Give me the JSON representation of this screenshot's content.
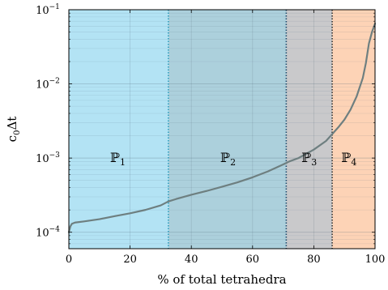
{
  "chart_data": {
    "type": "line",
    "xlabel": "% of total tetrahedra",
    "ylabel": "c0Δt",
    "ylabel_main": "c",
    "ylabel_sub": "0",
    "ylabel_tail": "Δt",
    "xlim": [
      0,
      100
    ],
    "ylim": [
      6e-05,
      0.1
    ],
    "yscale": "log",
    "grid": true,
    "x_ticks": [
      0,
      20,
      40,
      60,
      80,
      100
    ],
    "x_tick_labels": [
      "0",
      "20",
      "40",
      "60",
      "80",
      "100"
    ],
    "y_ticks": [
      0.0001,
      0.001,
      0.01,
      0.1
    ],
    "y_tick_labels": [
      {
        "base": "10",
        "exp": "−4"
      },
      {
        "base": "10",
        "exp": "−3"
      },
      {
        "base": "10",
        "exp": "−2"
      },
      {
        "base": "10",
        "exp": "−1"
      }
    ],
    "regions": [
      {
        "x0": 0,
        "x1": 32.5,
        "color": "#b3e3f4",
        "label_main": "ℙ",
        "label_sub": "1",
        "label_x": 16,
        "label_y": 0.001,
        "boundary_color": "#2f9fc0"
      },
      {
        "x0": 32.5,
        "x1": 71,
        "color": "#acd0dc",
        "label_main": "ℙ",
        "label_sub": "2",
        "label_x": 52,
        "label_y": 0.001,
        "boundary_color": "#1f4d6e"
      },
      {
        "x0": 71,
        "x1": 86,
        "color": "#c9c9cb",
        "label_main": "ℙ",
        "label_sub": "3",
        "label_x": 78.5,
        "label_y": 0.001,
        "boundary_color": "#333333"
      },
      {
        "x0": 86,
        "x1": 100,
        "color": "#fdd3b6",
        "label_main": "ℙ",
        "label_sub": "4",
        "label_x": 91.5,
        "label_y": 0.001,
        "boundary_color": null
      }
    ],
    "series": [
      {
        "color": "#6e7f80",
        "x": [
          0,
          0.5,
          1,
          2,
          5,
          10,
          15,
          20,
          25,
          30,
          32.5,
          35,
          40,
          45,
          50,
          55,
          60,
          65,
          70,
          72,
          75,
          80,
          84,
          86,
          88,
          90,
          92,
          94,
          96,
          97,
          98,
          99,
          100
        ],
        "y": [
          0.0001,
          0.00012,
          0.00013,
          0.000135,
          0.00014,
          0.00015,
          0.000165,
          0.00018,
          0.0002,
          0.00023,
          0.00026,
          0.00028,
          0.00032,
          0.00036,
          0.00041,
          0.00047,
          0.00055,
          0.00066,
          0.00082,
          0.0009,
          0.001,
          0.0013,
          0.0017,
          0.0021,
          0.0026,
          0.0033,
          0.0045,
          0.0068,
          0.012,
          0.019,
          0.035,
          0.05,
          0.065
        ]
      }
    ]
  }
}
